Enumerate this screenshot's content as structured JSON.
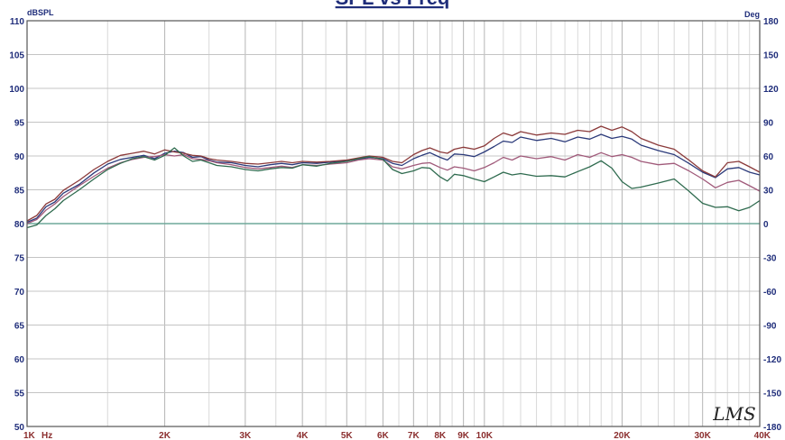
{
  "chart_data": {
    "type": "line",
    "title": "SPL vs Freq",
    "y_unit_left": "dBSPL",
    "y_unit_right": "Deg",
    "x_unit": "Hz",
    "x_scale": "log",
    "xlim": [
      1000,
      40000
    ],
    "ylim": [
      50,
      110
    ],
    "ylim_right": [
      -180,
      180
    ],
    "grid": true,
    "logo": "LMS",
    "y_ticks_left": [
      "110",
      "105",
      "100",
      "95",
      "90",
      "85",
      "80",
      "75",
      "70",
      "65",
      "60",
      "55",
      "50"
    ],
    "y_ticks_right": [
      "180",
      "150",
      "120",
      "90",
      "60",
      "30",
      "0",
      "-30",
      "-60",
      "-90",
      "-120",
      "-150",
      "-180"
    ],
    "x_ticks": [
      {
        "value": 1000,
        "label": "1K"
      },
      {
        "value": 2000,
        "label": "2K"
      },
      {
        "value": 3000,
        "label": "3K"
      },
      {
        "value": 4000,
        "label": "4K"
      },
      {
        "value": 5000,
        "label": "5K"
      },
      {
        "value": 6000,
        "label": "6K"
      },
      {
        "value": 7000,
        "label": "7K"
      },
      {
        "value": 8000,
        "label": "8K"
      },
      {
        "value": 9000,
        "label": "9K"
      },
      {
        "value": 10000,
        "label": "10K"
      },
      {
        "value": 20000,
        "label": "20K"
      },
      {
        "value": 30000,
        "label": "30K"
      },
      {
        "value": 40000,
        "label": "40K"
      }
    ],
    "series": [
      {
        "color": "#2b3a7a",
        "x": [
          1000,
          1050,
          1100,
          1150,
          1200,
          1300,
          1400,
          1500,
          1600,
          1700,
          1800,
          1900,
          2000,
          2100,
          2200,
          2300,
          2400,
          2500,
          2600,
          2800,
          3000,
          3200,
          3400,
          3600,
          3800,
          4000,
          4300,
          4600,
          5000,
          5300,
          5600,
          6000,
          6300,
          6600,
          7000,
          7300,
          7600,
          8000,
          8300,
          8600,
          9000,
          9500,
          10000,
          10500,
          11000,
          11500,
          12000,
          13000,
          14000,
          15000,
          16000,
          17000,
          18000,
          19000,
          20000,
          21000,
          22000,
          24000,
          26000,
          28000,
          30000,
          32000,
          34000,
          36000,
          38000,
          40000
        ],
        "values": [
          80.2,
          80.8,
          82.5,
          83.2,
          84.5,
          85.8,
          87.5,
          88.8,
          89.5,
          89.8,
          90.1,
          89.6,
          90.4,
          90.7,
          90.5,
          89.8,
          89.9,
          89.4,
          89.1,
          89.0,
          88.6,
          88.4,
          88.7,
          88.9,
          88.7,
          89.0,
          88.9,
          89.1,
          89.3,
          89.5,
          89.8,
          89.6,
          88.9,
          88.6,
          89.6,
          90.1,
          90.5,
          89.8,
          89.4,
          90.3,
          90.2,
          89.9,
          90.6,
          91.4,
          92.2,
          92.0,
          92.8,
          92.3,
          92.6,
          92.1,
          92.8,
          92.5,
          93.2,
          92.6,
          92.9,
          92.5,
          91.6,
          90.8,
          90.2,
          88.9,
          87.6,
          86.8,
          88.1,
          88.3,
          87.6,
          87.2
        ]
      },
      {
        "color": "#8b3a3a",
        "x": [
          1000,
          1050,
          1100,
          1150,
          1200,
          1300,
          1400,
          1500,
          1600,
          1700,
          1800,
          1900,
          2000,
          2100,
          2200,
          2300,
          2400,
          2500,
          2600,
          2800,
          3000,
          3200,
          3400,
          3600,
          3800,
          4000,
          4300,
          4600,
          5000,
          5300,
          5600,
          6000,
          6300,
          6600,
          7000,
          7300,
          7600,
          8000,
          8300,
          8600,
          9000,
          9500,
          10000,
          10500,
          11000,
          11500,
          12000,
          13000,
          14000,
          15000,
          16000,
          17000,
          18000,
          19000,
          20000,
          21000,
          22000,
          24000,
          26000,
          28000,
          30000,
          32000,
          34000,
          36000,
          38000,
          40000
        ],
        "values": [
          80.4,
          81.2,
          82.9,
          83.6,
          84.9,
          86.4,
          88.0,
          89.2,
          90.1,
          90.4,
          90.7,
          90.3,
          90.9,
          90.6,
          90.4,
          90.1,
          90.0,
          89.6,
          89.4,
          89.2,
          88.9,
          88.8,
          89.0,
          89.2,
          89.0,
          89.2,
          89.1,
          89.2,
          89.4,
          89.7,
          90.0,
          89.8,
          89.2,
          89.0,
          90.2,
          90.8,
          91.2,
          90.6,
          90.4,
          91.0,
          91.3,
          91.0,
          91.5,
          92.6,
          93.4,
          93.0,
          93.6,
          93.1,
          93.4,
          93.2,
          93.8,
          93.6,
          94.4,
          93.8,
          94.3,
          93.6,
          92.6,
          91.6,
          91.0,
          89.4,
          87.8,
          86.9,
          89.0,
          89.2,
          88.4,
          87.6
        ]
      },
      {
        "color": "#a05a7a",
        "x": [
          1000,
          1050,
          1100,
          1150,
          1200,
          1300,
          1400,
          1500,
          1600,
          1700,
          1800,
          1900,
          2000,
          2100,
          2200,
          2300,
          2400,
          2500,
          2600,
          2800,
          3000,
          3200,
          3400,
          3600,
          3800,
          4000,
          4300,
          4600,
          5000,
          5300,
          5600,
          6000,
          6300,
          6600,
          7000,
          7300,
          7600,
          8000,
          8300,
          8600,
          9000,
          9500,
          10000,
          10500,
          11000,
          11500,
          12000,
          13000,
          14000,
          15000,
          16000,
          17000,
          18000,
          19000,
          20000,
          21000,
          22000,
          24000,
          26000,
          28000,
          30000,
          32000,
          34000,
          36000,
          38000,
          40000
        ],
        "values": [
          80.0,
          80.6,
          82.0,
          82.9,
          84.0,
          85.6,
          87.0,
          88.2,
          89.0,
          89.5,
          89.8,
          89.9,
          90.2,
          90.0,
          90.2,
          89.6,
          89.5,
          89.3,
          89.0,
          88.7,
          88.3,
          88.1,
          88.3,
          88.5,
          88.3,
          88.7,
          88.6,
          88.8,
          89.0,
          89.4,
          89.6,
          89.4,
          88.4,
          88.1,
          88.6,
          88.9,
          89.0,
          88.3,
          87.9,
          88.4,
          88.2,
          87.8,
          88.3,
          89.0,
          89.8,
          89.4,
          90.0,
          89.6,
          89.9,
          89.4,
          90.2,
          89.8,
          90.5,
          89.9,
          90.2,
          89.8,
          89.2,
          88.7,
          88.9,
          87.8,
          86.6,
          85.3,
          86.1,
          86.4,
          85.6,
          84.8
        ]
      },
      {
        "color": "#2f6b4f",
        "x": [
          1000,
          1050,
          1100,
          1150,
          1200,
          1300,
          1400,
          1500,
          1600,
          1700,
          1800,
          1900,
          2000,
          2100,
          2200,
          2300,
          2400,
          2500,
          2600,
          2800,
          3000,
          3200,
          3400,
          3600,
          3800,
          4000,
          4300,
          4600,
          5000,
          5300,
          5600,
          6000,
          6300,
          6600,
          7000,
          7300,
          7600,
          8000,
          8300,
          8600,
          9000,
          9500,
          10000,
          10500,
          11000,
          11500,
          12000,
          13000,
          14000,
          15000,
          16000,
          17000,
          18000,
          19000,
          20000,
          21000,
          22000,
          24000,
          26000,
          28000,
          30000,
          32000,
          34000,
          36000,
          38000,
          40000
        ],
        "values": [
          79.4,
          79.8,
          81.2,
          82.2,
          83.4,
          85.0,
          86.6,
          88.0,
          88.9,
          89.6,
          89.9,
          89.4,
          90.1,
          91.2,
          90.0,
          89.2,
          89.4,
          89.0,
          88.6,
          88.4,
          88.0,
          87.8,
          88.1,
          88.3,
          88.2,
          88.7,
          88.5,
          88.9,
          89.2,
          89.6,
          89.9,
          89.5,
          88.0,
          87.4,
          87.8,
          88.3,
          88.2,
          86.9,
          86.3,
          87.3,
          87.1,
          86.6,
          86.2,
          86.9,
          87.6,
          87.2,
          87.4,
          87.0,
          87.1,
          86.9,
          87.7,
          88.4,
          89.3,
          88.2,
          86.2,
          85.2,
          85.4,
          86.0,
          86.6,
          84.8,
          83.0,
          82.4,
          82.5,
          81.9,
          82.4,
          83.4
        ]
      }
    ]
  }
}
